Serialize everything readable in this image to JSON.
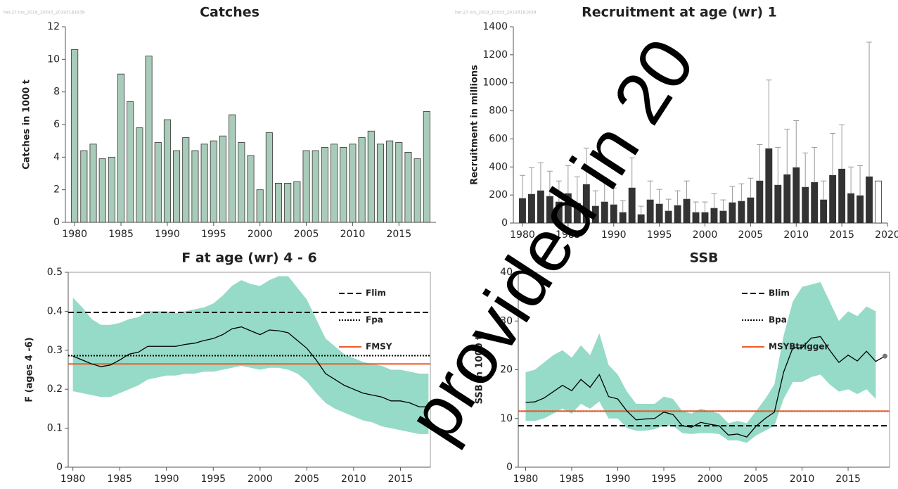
{
  "chart_data": [
    {
      "type": "bar",
      "title": "Catches",
      "y_label": "Catches in 1000 t",
      "stamp": "her.27.nrs_2019_10343_20193181639",
      "x": [
        1980,
        1981,
        1982,
        1983,
        1984,
        1985,
        1986,
        1987,
        1988,
        1989,
        1990,
        1991,
        1992,
        1993,
        1994,
        1995,
        1996,
        1997,
        1998,
        1999,
        2000,
        2001,
        2002,
        2003,
        2004,
        2005,
        2006,
        2007,
        2008,
        2009,
        2010,
        2011,
        2012,
        2013,
        2014,
        2015,
        2016,
        2017,
        2018
      ],
      "values": [
        10.6,
        4.4,
        4.8,
        3.9,
        4.0,
        9.1,
        7.4,
        5.8,
        10.2,
        4.9,
        6.3,
        4.4,
        5.2,
        4.4,
        4.8,
        5.0,
        5.3,
        6.6,
        4.9,
        4.1,
        2.0,
        5.5,
        2.4,
        2.4,
        2.5,
        4.4,
        4.4,
        4.6,
        4.8,
        4.6,
        4.8,
        5.2,
        5.6,
        4.8,
        5.0,
        4.9,
        4.3,
        3.9,
        6.8
      ],
      "color": "#a9cbb9",
      "xlim": [
        1979,
        2019
      ],
      "xticks": [
        1980,
        1985,
        1990,
        1995,
        2000,
        2005,
        2010,
        2015
      ],
      "ylim": [
        0,
        12
      ],
      "yticks": [
        0,
        2,
        4,
        6,
        8,
        10,
        12
      ]
    },
    {
      "type": "bar",
      "title": "Recruitment at age (wr) 1",
      "y_label": "Recruitment in millions",
      "stamp": "her.27.nrs_2019_10343_20193181639",
      "x": [
        1980,
        1981,
        1982,
        1983,
        1984,
        1985,
        1986,
        1987,
        1988,
        1989,
        1990,
        1991,
        1992,
        1993,
        1994,
        1995,
        1996,
        1997,
        1998,
        1999,
        2000,
        2001,
        2002,
        2003,
        2004,
        2005,
        2006,
        2007,
        2008,
        2009,
        2010,
        2011,
        2012,
        2013,
        2014,
        2015,
        2016,
        2017,
        2018,
        2019
      ],
      "values": [
        175,
        205,
        230,
        190,
        150,
        210,
        140,
        275,
        120,
        150,
        130,
        75,
        250,
        60,
        165,
        135,
        85,
        125,
        170,
        75,
        75,
        105,
        85,
        145,
        155,
        180,
        300,
        530,
        270,
        345,
        395,
        255,
        290,
        165,
        340,
        385,
        210,
        195,
        330,
        300
      ],
      "upper": [
        340,
        395,
        430,
        370,
        300,
        410,
        330,
        535,
        230,
        295,
        250,
        160,
        465,
        120,
        300,
        240,
        170,
        230,
        300,
        150,
        150,
        210,
        165,
        260,
        280,
        320,
        560,
        1020,
        540,
        670,
        730,
        500,
        540,
        300,
        640,
        700,
        400,
        410,
        1290,
        null
      ],
      "colors": [
        "#333333",
        "#333333",
        "#333333",
        "#333333",
        "#333333",
        "#333333",
        "#333333",
        "#333333",
        "#333333",
        "#333333",
        "#333333",
        "#333333",
        "#333333",
        "#333333",
        "#333333",
        "#333333",
        "#333333",
        "#333333",
        "#333333",
        "#333333",
        "#333333",
        "#333333",
        "#333333",
        "#333333",
        "#333333",
        "#333333",
        "#333333",
        "#333333",
        "#333333",
        "#333333",
        "#333333",
        "#333333",
        "#333333",
        "#333333",
        "#333333",
        "#333333",
        "#333333",
        "#333333",
        "#333333",
        "#ffffff"
      ],
      "xlim": [
        1979,
        2020
      ],
      "xticks": [
        1980,
        1985,
        1990,
        1995,
        2000,
        2005,
        2010,
        2015,
        2020
      ],
      "ylim": [
        0,
        1400
      ],
      "yticks": [
        0,
        200,
        400,
        600,
        800,
        1000,
        1200,
        1400
      ]
    },
    {
      "type": "line",
      "title": "F at age (wr) 4 - 6",
      "y_label": "F (ages 4 -6)",
      "x": [
        1980,
        1981,
        1982,
        1983,
        1984,
        1985,
        1986,
        1987,
        1988,
        1989,
        1990,
        1991,
        1992,
        1993,
        1994,
        1995,
        1996,
        1997,
        1998,
        1999,
        2000,
        2001,
        2002,
        2003,
        2004,
        2005,
        2006,
        2007,
        2008,
        2009,
        2010,
        2011,
        2012,
        2013,
        2014,
        2015,
        2016,
        2017,
        2018
      ],
      "values": [
        0.285,
        0.275,
        0.265,
        0.258,
        0.262,
        0.275,
        0.29,
        0.295,
        0.31,
        0.31,
        0.31,
        0.31,
        0.315,
        0.318,
        0.325,
        0.33,
        0.34,
        0.355,
        0.36,
        0.35,
        0.34,
        0.352,
        0.35,
        0.345,
        0.325,
        0.305,
        0.275,
        0.24,
        0.225,
        0.21,
        0.2,
        0.19,
        0.185,
        0.18,
        0.17,
        0.17,
        0.165,
        0.155,
        0.155
      ],
      "low": [
        0.195,
        0.19,
        0.185,
        0.18,
        0.18,
        0.19,
        0.2,
        0.21,
        0.225,
        0.23,
        0.235,
        0.235,
        0.24,
        0.24,
        0.245,
        0.245,
        0.25,
        0.255,
        0.26,
        0.255,
        0.25,
        0.255,
        0.255,
        0.25,
        0.24,
        0.22,
        0.19,
        0.165,
        0.15,
        0.14,
        0.13,
        0.12,
        0.115,
        0.105,
        0.1,
        0.095,
        0.09,
        0.085,
        0.085
      ],
      "high": [
        0.435,
        0.41,
        0.38,
        0.365,
        0.365,
        0.37,
        0.38,
        0.385,
        0.4,
        0.4,
        0.4,
        0.395,
        0.4,
        0.405,
        0.41,
        0.42,
        0.44,
        0.465,
        0.48,
        0.47,
        0.465,
        0.48,
        0.49,
        0.49,
        0.46,
        0.43,
        0.38,
        0.33,
        0.31,
        0.29,
        0.28,
        0.27,
        0.265,
        0.26,
        0.25,
        0.25,
        0.245,
        0.24,
        0.24
      ],
      "color": "#000000",
      "band_color": "#8fd9c4",
      "ref_lines": [
        {
          "name": "Flim",
          "value": 0.397,
          "color": "#000000",
          "style": "dashed"
        },
        {
          "name": "Fpa",
          "value": 0.286,
          "color": "#000000",
          "style": "dotted"
        },
        {
          "name": "FMSY",
          "value": 0.265,
          "color": "#f05a28",
          "style": "solid"
        }
      ],
      "legend": "top-right",
      "xlim": [
        1979.5,
        2018.2
      ],
      "xticks": [
        1980,
        1985,
        1990,
        1995,
        2000,
        2005,
        2010,
        2015
      ],
      "ylim": [
        0,
        0.5
      ],
      "yticks": [
        0,
        0.1,
        0.2,
        0.3,
        0.4,
        0.5
      ]
    },
    {
      "type": "line",
      "title": "SSB",
      "y_label": "SSB in 1000 t",
      "x": [
        1980,
        1981,
        1982,
        1983,
        1984,
        1985,
        1986,
        1987,
        1988,
        1989,
        1990,
        1991,
        1992,
        1993,
        1994,
        1995,
        1996,
        1997,
        1998,
        1999,
        2000,
        2001,
        2002,
        2003,
        2004,
        2005,
        2006,
        2007,
        2008,
        2009,
        2010,
        2011,
        2012,
        2013,
        2014,
        2015,
        2016,
        2017,
        2018,
        2019
      ],
      "values": [
        13.3,
        13.4,
        14.2,
        15.5,
        16.8,
        15.7,
        18.0,
        16.4,
        19.0,
        14.5,
        14.0,
        11.5,
        9.7,
        9.9,
        10.0,
        11.3,
        10.8,
        8.5,
        8.2,
        9.2,
        8.8,
        8.5,
        6.6,
        6.8,
        6.2,
        8.4,
        10.0,
        11.3,
        19.5,
        24.5,
        24.5,
        26.5,
        26.8,
        24.0,
        21.5,
        23.0,
        21.8,
        23.8,
        21.7,
        22.8
      ],
      "low": [
        9.5,
        9.5,
        10,
        11,
        12,
        11,
        13,
        12,
        13.5,
        10,
        10,
        8,
        7.5,
        7.5,
        7.8,
        8.5,
        8.5,
        7,
        6.8,
        7,
        7,
        6.8,
        5.5,
        5.5,
        5,
        6.5,
        7.5,
        8.5,
        14,
        17.5,
        17.5,
        18.5,
        19,
        17,
        15.5,
        16,
        15,
        16,
        14,
        null
      ],
      "high": [
        19.5,
        20,
        21.5,
        23,
        24,
        22.5,
        25,
        23,
        27.5,
        21,
        19,
        15.5,
        13,
        13,
        13,
        14.5,
        14,
        11.5,
        11,
        12,
        11.5,
        11,
        9,
        9.5,
        9,
        11.5,
        14,
        17,
        27,
        34,
        37,
        37.5,
        38,
        34,
        30,
        32,
        31,
        33,
        32,
        null
      ],
      "color": "#000000",
      "band_color": "#8fd9c4",
      "ref_lines": [
        {
          "name": "Blim",
          "value": 8.5,
          "color": "#000000",
          "style": "dashed"
        },
        {
          "name": "Bpa",
          "value": 11.5,
          "color": "#000000",
          "style": "dotted"
        },
        {
          "name": "MSYBtrigger",
          "value": 11.5,
          "color": "#f05a28",
          "style": "solid"
        }
      ],
      "legend": "top-right",
      "xlim": [
        1979.2,
        2019.5
      ],
      "xticks": [
        1980,
        1985,
        1990,
        1995,
        2000,
        2005,
        2010,
        2015
      ],
      "ylim": [
        0,
        40
      ],
      "yticks": [
        0,
        10,
        20,
        30,
        40
      ]
    }
  ],
  "watermark": "provided in 20"
}
